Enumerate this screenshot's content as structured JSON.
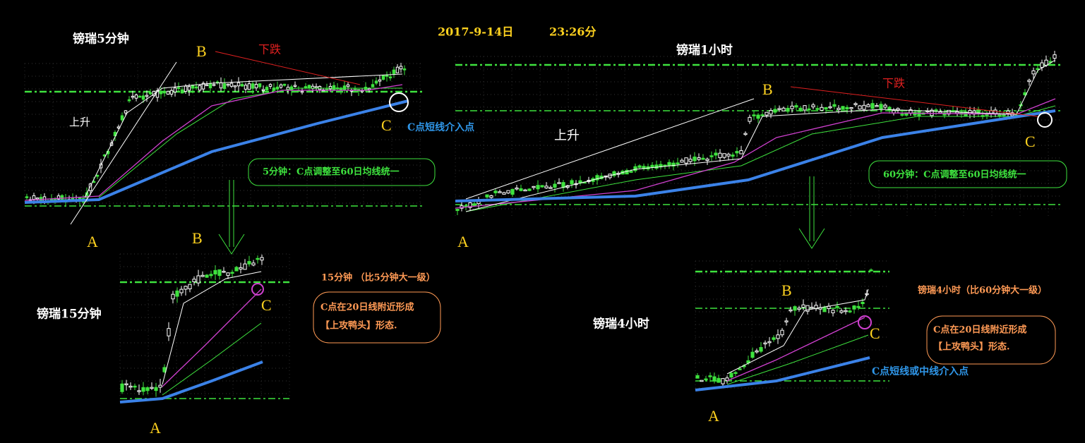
{
  "header": {
    "date": "2017-9-14日",
    "time": "23:26分"
  },
  "panel_5m": {
    "title": "镑瑞5分钟",
    "point_a": "A",
    "point_b": "B",
    "point_c": "C",
    "fall": "下跌",
    "rise": "上升",
    "entry": "C点短线介入点",
    "note": "5分钟：C点调整至60日均线统一"
  },
  "panel_15m": {
    "title": "镑瑞15分钟",
    "point_a": "A",
    "point_b": "B",
    "point_c": "C",
    "level": "15分钟 （比5分钟大一级）",
    "note_lines": [
      "C点在20日线附近形成",
      "【上攻鸭头】形态."
    ]
  },
  "panel_1h": {
    "title": "镑瑞1小时",
    "point_a": "A",
    "point_b": "B",
    "point_c": "C",
    "fall": "下跌",
    "rise": "上升",
    "note": "60分钟：C点调整至60日均线统一"
  },
  "panel_4h": {
    "title": "镑瑞4小时",
    "point_a": "A",
    "point_b": "B",
    "point_c": "C",
    "level": "镑瑞4小时（比60分钟大一级）",
    "note_lines": [
      "C点在20日线附近形成",
      "【上攻鸭头】形态."
    ],
    "entry": "C点短线或中线介入点"
  }
}
